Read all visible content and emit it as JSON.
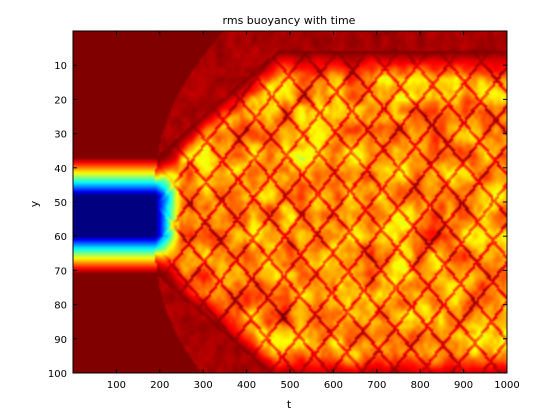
{
  "chart_data": {
    "type": "heatmap",
    "title": "rms buoyancy with time",
    "xlabel": "t",
    "ylabel": "y",
    "xlim": [
      0,
      1000
    ],
    "ylim": [
      0,
      100
    ],
    "y_reversed": true,
    "xticks": [
      100,
      200,
      300,
      400,
      500,
      600,
      700,
      800,
      900,
      1000
    ],
    "yticks": [
      10,
      20,
      30,
      40,
      50,
      60,
      70,
      80,
      90,
      100
    ],
    "colormap": "jet",
    "colorbar": false,
    "grid": false,
    "description_values": {
      "initial_band_center_y": 54,
      "initial_band_halfwidth_y": 17,
      "front_arrival_t": 190,
      "outer_region_level": 1.0,
      "band_core_level": 0.0,
      "mixed_region_level": 0.72
    }
  },
  "colors": {
    "jet_darkred": "#800000",
    "jet_red": "#ff0000",
    "jet_orange": "#ff8000",
    "jet_yellow": "#ffff00",
    "jet_cyan": "#00ffff",
    "jet_blue": "#0000ff",
    "jet_darkblue": "#000080"
  }
}
